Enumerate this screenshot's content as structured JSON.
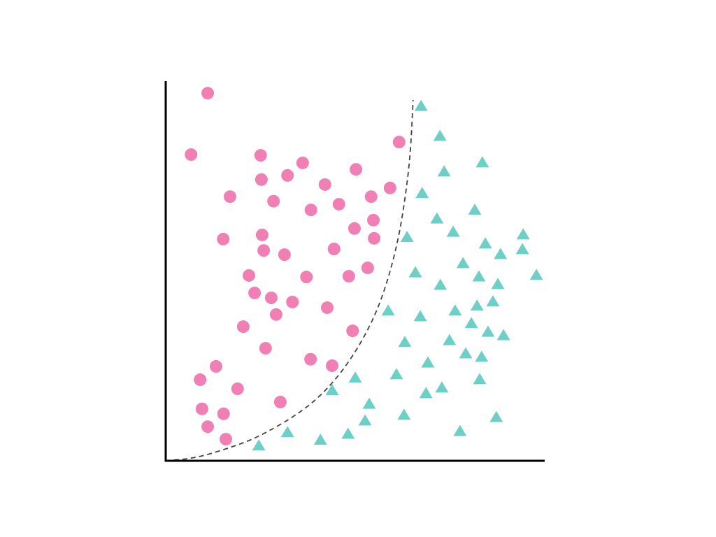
{
  "chart_data": {
    "type": "scatter",
    "title": "",
    "xlabel": "",
    "ylabel": "",
    "xlim": [
      0,
      10
    ],
    "ylim": [
      0,
      10
    ],
    "grid": false,
    "legend": "none",
    "ticks": "none",
    "series": [
      {
        "marker": "circle",
        "color": "#F07FB3",
        "points": [
          [
            1.11,
            9.7
          ],
          [
            0.67,
            8.08
          ],
          [
            2.51,
            8.06
          ],
          [
            3.62,
            7.86
          ],
          [
            5.03,
            7.69
          ],
          [
            2.53,
            7.42
          ],
          [
            3.22,
            7.53
          ],
          [
            4.21,
            7.29
          ],
          [
            5.93,
            7.2
          ],
          [
            6.17,
            8.41
          ],
          [
            1.7,
            6.97
          ],
          [
            2.85,
            6.85
          ],
          [
            3.84,
            6.62
          ],
          [
            4.58,
            6.77
          ],
          [
            5.43,
            6.97
          ],
          [
            5.49,
            6.35
          ],
          [
            4.99,
            6.13
          ],
          [
            5.51,
            5.87
          ],
          [
            1.52,
            5.85
          ],
          [
            2.55,
            5.96
          ],
          [
            2.59,
            5.55
          ],
          [
            3.14,
            5.44
          ],
          [
            4.45,
            5.59
          ],
          [
            5.34,
            5.09
          ],
          [
            4.84,
            4.87
          ],
          [
            3.72,
            4.85
          ],
          [
            2.2,
            4.89
          ],
          [
            2.35,
            4.43
          ],
          [
            2.79,
            4.3
          ],
          [
            3.35,
            4.19
          ],
          [
            2.92,
            3.86
          ],
          [
            4.27,
            4.04
          ],
          [
            2.05,
            3.54
          ],
          [
            4.94,
            3.43
          ],
          [
            2.64,
            2.97
          ],
          [
            3.83,
            2.68
          ],
          [
            4.4,
            2.51
          ],
          [
            1.33,
            2.49
          ],
          [
            0.91,
            2.14
          ],
          [
            1.9,
            1.9
          ],
          [
            3.03,
            1.55
          ],
          [
            0.96,
            1.37
          ],
          [
            1.53,
            1.24
          ],
          [
            1.11,
            0.9
          ],
          [
            1.59,
            0.57
          ]
        ]
      },
      {
        "marker": "triangle",
        "color": "#6ECFC7",
        "points": [
          [
            6.75,
            9.35
          ],
          [
            7.25,
            8.56
          ],
          [
            8.37,
            7.86
          ],
          [
            7.36,
            7.62
          ],
          [
            6.78,
            7.05
          ],
          [
            8.17,
            6.61
          ],
          [
            7.17,
            6.38
          ],
          [
            7.6,
            6.03
          ],
          [
            6.38,
            5.89
          ],
          [
            9.45,
            5.96
          ],
          [
            8.45,
            5.72
          ],
          [
            8.85,
            5.44
          ],
          [
            9.43,
            5.57
          ],
          [
            7.86,
            5.2
          ],
          [
            6.6,
            4.96
          ],
          [
            8.28,
            4.85
          ],
          [
            7.26,
            4.63
          ],
          [
            8.78,
            4.65
          ],
          [
            9.8,
            4.89
          ],
          [
            5.88,
            3.95
          ],
          [
            7.65,
            3.95
          ],
          [
            8.23,
            4.08
          ],
          [
            8.65,
            4.19
          ],
          [
            6.73,
            3.8
          ],
          [
            8.08,
            3.62
          ],
          [
            8.52,
            3.39
          ],
          [
            8.93,
            3.3
          ],
          [
            6.32,
            3.12
          ],
          [
            7.5,
            3.17
          ],
          [
            7.93,
            2.82
          ],
          [
            8.35,
            2.73
          ],
          [
            6.93,
            2.58
          ],
          [
            6.1,
            2.27
          ],
          [
            5.01,
            2.18
          ],
          [
            8.3,
            2.14
          ],
          [
            4.4,
            1.85
          ],
          [
            7.3,
            1.92
          ],
          [
            6.88,
            1.77
          ],
          [
            5.38,
            1.49
          ],
          [
            6.3,
            1.2
          ],
          [
            5.27,
            1.05
          ],
          [
            8.74,
            1.14
          ],
          [
            7.78,
            0.77
          ],
          [
            3.22,
            0.74
          ],
          [
            4.82,
            0.7
          ],
          [
            4.09,
            0.54
          ],
          [
            2.46,
            0.39
          ]
        ]
      }
    ],
    "decision_boundary": {
      "style": "dashed",
      "color": "#444444",
      "points": [
        [
          0,
          0
        ],
        [
          0.79,
          0.07
        ],
        [
          1.72,
          0.35
        ],
        [
          2.46,
          0.63
        ],
        [
          3.57,
          1.27
        ],
        [
          4.31,
          1.92
        ],
        [
          4.95,
          2.75
        ],
        [
          5.51,
          3.76
        ],
        [
          5.88,
          4.78
        ],
        [
          6.16,
          5.89
        ],
        [
          6.34,
          6.99
        ],
        [
          6.47,
          8.1
        ],
        [
          6.54,
          9.52
        ]
      ]
    }
  }
}
